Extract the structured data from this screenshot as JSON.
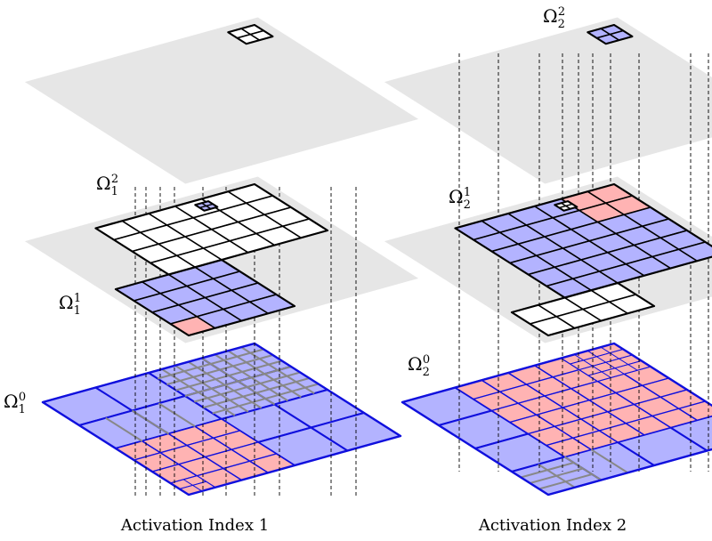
{
  "panels": [
    {
      "caption": "Activation Index 1",
      "labels": [
        {
          "base": "Ω",
          "sub": "1",
          "sup": "2"
        },
        {
          "base": "Ω",
          "sub": "1",
          "sup": "1"
        },
        {
          "base": "Ω",
          "sub": "1",
          "sup": "0"
        }
      ]
    },
    {
      "caption": "Activation Index 2",
      "labels": [
        {
          "base": "Ω",
          "sub": "2",
          "sup": "2"
        },
        {
          "base": "Ω",
          "sub": "2",
          "sup": "1"
        },
        {
          "base": "Ω",
          "sub": "2",
          "sup": "0"
        }
      ]
    }
  ],
  "colors": {
    "plane": "#e6e6e6",
    "active": "#b3b3ff",
    "marked": "#ffb3b3",
    "inactive": "#ffffff",
    "base_line": "#1010dd",
    "sub_line": "#888888",
    "grid_line": "#000000"
  }
}
